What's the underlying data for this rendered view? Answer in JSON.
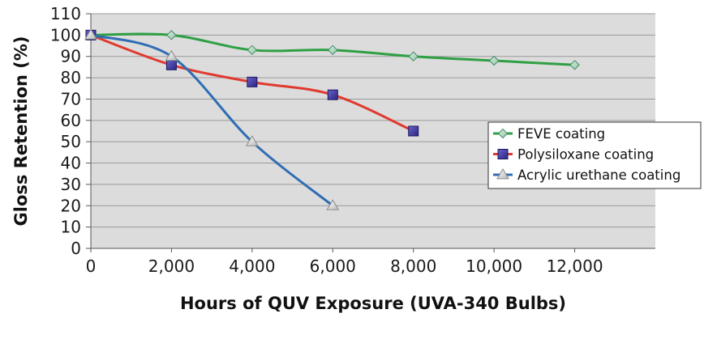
{
  "chart_data": {
    "type": "line",
    "xlabel": "Hours of QUV Exposure (UVA-340 Bulbs)",
    "ylabel": "Gloss Retention (%)",
    "xlim": [
      0,
      14000
    ],
    "ylim": [
      0,
      110
    ],
    "x_ticks": [
      0,
      2000,
      4000,
      6000,
      8000,
      10000,
      12000
    ],
    "x_tick_labels": [
      "0",
      "2,000",
      "4,000",
      "6,000",
      "8,000",
      "10,000",
      "12,000"
    ],
    "y_ticks": [
      0,
      10,
      20,
      30,
      40,
      50,
      60,
      70,
      80,
      90,
      100,
      110
    ],
    "y_tick_labels": [
      "0",
      "10",
      "20",
      "30",
      "40",
      "50",
      "60",
      "70",
      "80",
      "90",
      "100",
      "110"
    ],
    "grid": "horizontal",
    "plot_background": "#dcdcdc",
    "legend_position": "right",
    "series": [
      {
        "name": "FEVE coating",
        "color": "#2ea043",
        "marker": "diamond",
        "x": [
          0,
          2000,
          4000,
          6000,
          8000,
          10000,
          12000
        ],
        "y": [
          100,
          100,
          93,
          93,
          90,
          88,
          86
        ]
      },
      {
        "name": "Polysiloxane coating",
        "color": "#e03a2f",
        "marker": "square",
        "x": [
          0,
          2000,
          4000,
          6000,
          8000
        ],
        "y": [
          100,
          86,
          78,
          72,
          55
        ]
      },
      {
        "name": "Acrylic urethane coating",
        "color": "#2f6db3",
        "marker": "triangle",
        "x": [
          0,
          2000,
          4000,
          6000
        ],
        "y": [
          100,
          90,
          50,
          20
        ]
      }
    ]
  }
}
